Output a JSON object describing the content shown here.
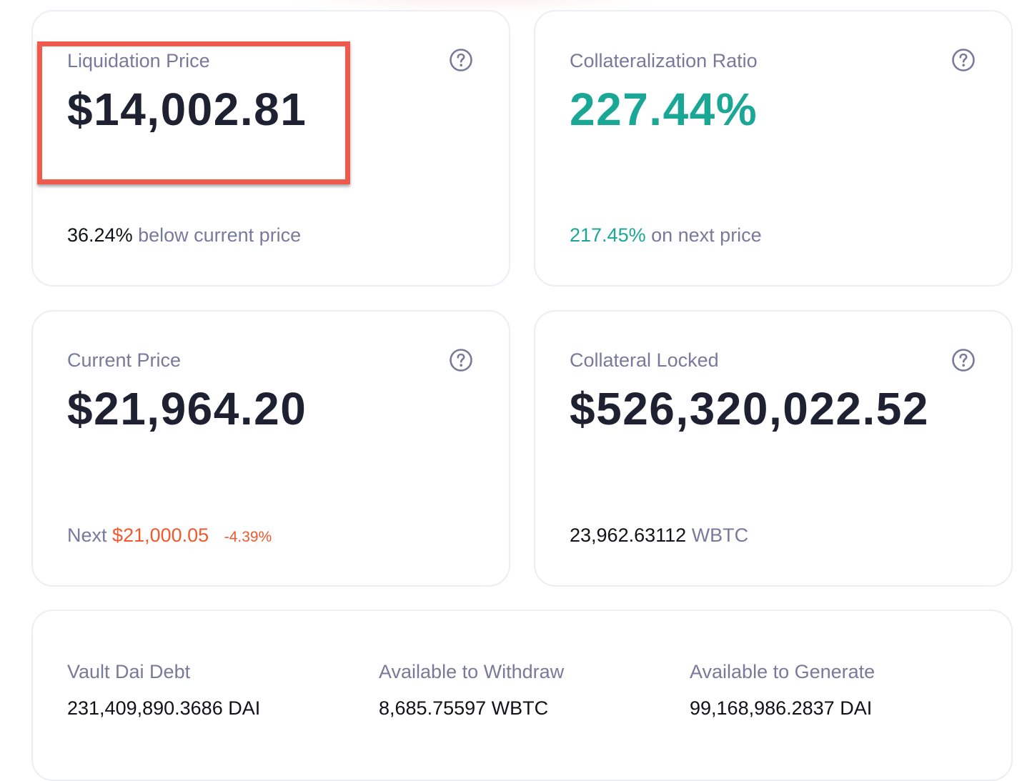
{
  "liquidation": {
    "label": "Liquidation Price",
    "value": "$14,002.81",
    "percent": "36.24%",
    "suffix": "below current price"
  },
  "ratio": {
    "label": "Collateralization Ratio",
    "value": "227.44%",
    "next_value": "217.45%",
    "suffix": "on next price"
  },
  "current_price": {
    "label": "Current Price",
    "value": "$21,964.20",
    "next_label": "Next",
    "next_value": "$21,000.05",
    "change": "-4.39%"
  },
  "collateral_locked": {
    "label": "Collateral Locked",
    "value": "$526,320,022.52",
    "amount": "23,962.63112",
    "unit": "WBTC"
  },
  "details": {
    "debt_label": "Vault Dai Debt",
    "debt_value": "231,409,890.3686 DAI",
    "withdraw_label": "Available to Withdraw",
    "withdraw_value": "8,685.75597 WBTC",
    "generate_label": "Available to Generate",
    "generate_value": "99,168,986.2837 DAI"
  },
  "colors": {
    "accent_teal": "#1ba795",
    "accent_orange": "#f2582d",
    "highlight_red": "#ef5a4c",
    "text_dark": "#1e2131",
    "text_muted": "#787a9b"
  }
}
